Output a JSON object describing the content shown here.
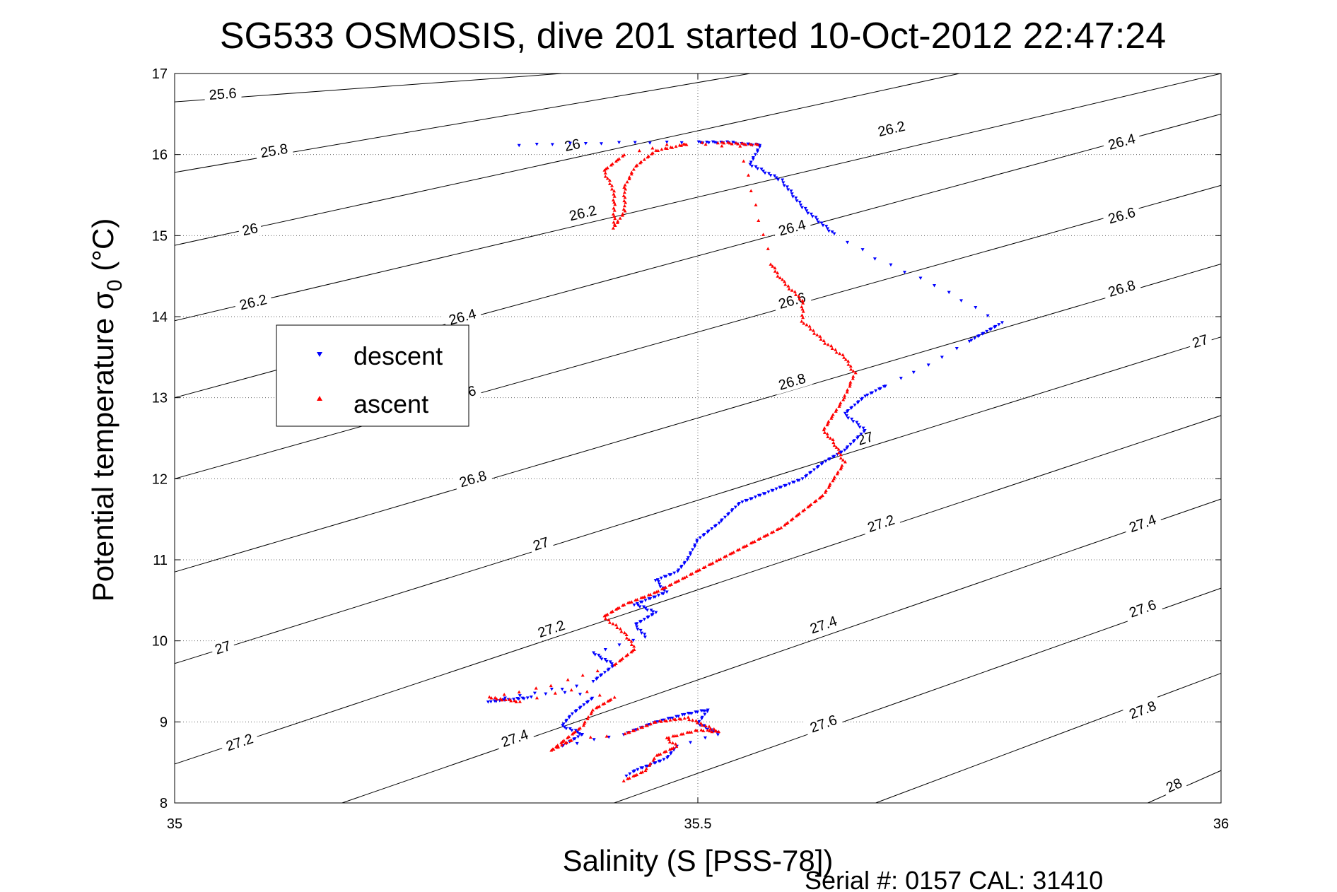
{
  "chart_data": {
    "type": "scatter",
    "title": "SG533 OSMOSIS, dive 201 started 10-Oct-2012 22:47:24",
    "xlabel": "Salinity (S [PSS-78])",
    "ylabel_main": "Potential temperature σ",
    "ylabel_sub": "0",
    "ylabel_unit": " (°C)",
    "xlim": [
      35,
      36
    ],
    "ylim": [
      8,
      17
    ],
    "xticks": [
      35,
      35.5,
      36
    ],
    "xtick_labels": [
      "35",
      "35.5",
      "36"
    ],
    "yticks": [
      8,
      9,
      10,
      11,
      12,
      13,
      14,
      15,
      16,
      17
    ],
    "ytick_labels": [
      "8",
      "9",
      "10",
      "11",
      "12",
      "13",
      "14",
      "15",
      "16",
      "17"
    ],
    "grid": true,
    "legend_position": "left",
    "footer": "Serial #: 0157  CAL: 31410",
    "contours": [
      {
        "label": "25.6",
        "segment": [
          [
            35.0,
            16.65
          ],
          [
            35.37,
            17.0
          ]
        ],
        "labels_at": [
          [
            35.046,
            16.75
          ]
        ]
      },
      {
        "label": "25.8",
        "segment": [
          [
            35.0,
            15.78
          ],
          [
            35.55,
            17.0
          ]
        ],
        "labels_at": [
          [
            35.095,
            16.05
          ]
        ]
      },
      {
        "label": "26",
        "segment": [
          [
            35.0,
            14.88
          ],
          [
            35.75,
            17.0
          ]
        ],
        "labels_at": [
          [
            35.072,
            15.08
          ],
          [
            35.38,
            16.12
          ]
        ]
      },
      {
        "label": "26.2",
        "segment": [
          [
            35.0,
            13.95
          ],
          [
            36.0,
            17.0
          ]
        ],
        "labels_at": [
          [
            35.075,
            14.18
          ],
          [
            35.39,
            15.28
          ],
          [
            35.685,
            16.32
          ]
        ]
      },
      {
        "label": "26.4",
        "segment": [
          [
            35.0,
            13.0
          ],
          [
            36.0,
            16.5
          ]
        ],
        "labels_at": [
          [
            35.275,
            14.0
          ],
          [
            35.59,
            15.1
          ],
          [
            35.905,
            16.16
          ]
        ]
      },
      {
        "label": "26.6",
        "segment": [
          [
            35.0,
            12.0
          ],
          [
            36.0,
            15.62
          ]
        ],
        "labels_at": [
          [
            35.275,
            13.05
          ],
          [
            35.59,
            14.2
          ],
          [
            35.905,
            15.25
          ]
        ]
      },
      {
        "label": "26.8",
        "segment": [
          [
            35.0,
            10.85
          ],
          [
            36.0,
            14.65
          ]
        ],
        "labels_at": [
          [
            35.285,
            12.0
          ],
          [
            35.59,
            13.2
          ],
          [
            35.905,
            14.35
          ]
        ]
      },
      {
        "label": "27",
        "segment": [
          [
            35.0,
            9.72
          ],
          [
            36.0,
            13.75
          ]
        ],
        "labels_at": [
          [
            35.046,
            9.92
          ],
          [
            35.35,
            11.2
          ],
          [
            35.66,
            12.5
          ],
          [
            35.98,
            13.7
          ]
        ]
      },
      {
        "label": "27.2",
        "segment": [
          [
            35.0,
            8.48
          ],
          [
            36.0,
            12.78
          ]
        ],
        "labels_at": [
          [
            35.062,
            8.75
          ],
          [
            35.36,
            10.15
          ],
          [
            35.675,
            11.45
          ]
        ]
      },
      {
        "label": "27.4",
        "segment": [
          [
            35.16,
            8.0
          ],
          [
            36.0,
            11.75
          ]
        ],
        "labels_at": [
          [
            35.325,
            8.8
          ],
          [
            35.62,
            10.2
          ],
          [
            35.925,
            11.45
          ]
        ]
      },
      {
        "label": "27.6",
        "segment": [
          [
            35.42,
            8.0
          ],
          [
            36.0,
            10.65
          ]
        ],
        "labels_at": [
          [
            35.62,
            8.98
          ],
          [
            35.925,
            10.4
          ]
        ]
      },
      {
        "label": "27.8",
        "segment": [
          [
            35.67,
            8.0
          ],
          [
            36.0,
            9.6
          ]
        ],
        "labels_at": [
          [
            35.925,
            9.15
          ]
        ]
      },
      {
        "label": "28",
        "segment": [
          [
            35.93,
            8.0
          ],
          [
            36.0,
            8.4
          ]
        ],
        "labels_at": [
          [
            35.955,
            8.22
          ]
        ]
      }
    ],
    "series": [
      {
        "name": "descent",
        "color": "#0000ff",
        "marker": "triangle-down",
        "path": [
          [
            35.33,
            16.12
          ],
          [
            35.44,
            16.15
          ],
          [
            35.5,
            16.15
          ],
          [
            35.53,
            16.15
          ],
          [
            35.55,
            16.12
          ],
          [
            35.56,
            16.12
          ],
          [
            35.55,
            15.88
          ],
          [
            35.58,
            15.68
          ],
          [
            35.6,
            15.35
          ],
          [
            35.63,
            15.02
          ],
          [
            35.67,
            14.72
          ],
          [
            35.74,
            14.3
          ],
          [
            35.79,
            13.92
          ],
          [
            35.76,
            13.7
          ],
          [
            35.72,
            13.4
          ],
          [
            35.68,
            13.15
          ],
          [
            35.66,
            13.02
          ],
          [
            35.64,
            12.8
          ],
          [
            35.66,
            12.6
          ],
          [
            35.64,
            12.35
          ],
          [
            35.62,
            12.2
          ],
          [
            35.6,
            12.0
          ],
          [
            35.57,
            11.85
          ],
          [
            35.54,
            11.7
          ],
          [
            35.52,
            11.45
          ],
          [
            35.5,
            11.25
          ],
          [
            35.49,
            11.0
          ],
          [
            35.48,
            10.85
          ],
          [
            35.46,
            10.75
          ],
          [
            35.47,
            10.6
          ],
          [
            35.44,
            10.45
          ],
          [
            35.46,
            10.35
          ],
          [
            35.44,
            10.2
          ],
          [
            35.45,
            10.05
          ],
          [
            35.4,
            9.85
          ],
          [
            35.42,
            9.7
          ],
          [
            35.4,
            9.5
          ],
          [
            35.34,
            9.3
          ],
          [
            35.3,
            9.25
          ],
          [
            35.36,
            9.4
          ],
          [
            35.4,
            9.3
          ],
          [
            35.38,
            9.1
          ],
          [
            35.37,
            8.95
          ],
          [
            35.39,
            8.85
          ],
          [
            35.37,
            8.7
          ],
          [
            35.43,
            8.85
          ],
          [
            35.46,
            9.0
          ],
          [
            35.49,
            9.1
          ],
          [
            35.51,
            9.15
          ],
          [
            35.5,
            8.98
          ],
          [
            35.52,
            8.85
          ],
          [
            35.48,
            8.7
          ],
          [
            35.47,
            8.55
          ],
          [
            35.44,
            8.4
          ],
          [
            35.43,
            8.32
          ]
        ]
      },
      {
        "name": "ascent",
        "color": "#ff0000",
        "marker": "triangle-up",
        "path": [
          [
            35.43,
            8.28
          ],
          [
            35.45,
            8.4
          ],
          [
            35.46,
            8.58
          ],
          [
            35.48,
            8.7
          ],
          [
            35.47,
            8.8
          ],
          [
            35.5,
            8.9
          ],
          [
            35.52,
            8.88
          ],
          [
            35.49,
            9.05
          ],
          [
            35.46,
            9.0
          ],
          [
            35.43,
            8.85
          ],
          [
            35.38,
            8.78
          ],
          [
            35.36,
            8.65
          ],
          [
            35.39,
            8.95
          ],
          [
            35.4,
            9.15
          ],
          [
            35.42,
            9.3
          ],
          [
            35.38,
            9.4
          ],
          [
            35.33,
            9.25
          ],
          [
            35.3,
            9.3
          ],
          [
            35.36,
            9.45
          ],
          [
            35.42,
            9.7
          ],
          [
            35.44,
            9.9
          ],
          [
            35.43,
            10.1
          ],
          [
            35.41,
            10.3
          ],
          [
            35.43,
            10.45
          ],
          [
            35.46,
            10.6
          ],
          [
            35.49,
            10.8
          ],
          [
            35.52,
            11.0
          ],
          [
            35.55,
            11.2
          ],
          [
            35.58,
            11.4
          ],
          [
            35.6,
            11.6
          ],
          [
            35.62,
            11.8
          ],
          [
            35.63,
            12.0
          ],
          [
            35.64,
            12.2
          ],
          [
            35.63,
            12.45
          ],
          [
            35.62,
            12.6
          ],
          [
            35.63,
            12.8
          ],
          [
            35.64,
            13.0
          ],
          [
            35.65,
            13.3
          ],
          [
            35.64,
            13.5
          ],
          [
            35.62,
            13.7
          ],
          [
            35.6,
            13.95
          ],
          [
            35.6,
            14.2
          ],
          [
            35.58,
            14.45
          ],
          [
            35.57,
            14.65
          ],
          [
            35.54,
            16.1
          ],
          [
            35.49,
            16.13
          ],
          [
            35.46,
            16.05
          ],
          [
            35.44,
            15.85
          ],
          [
            35.43,
            15.6
          ],
          [
            35.43,
            15.3
          ],
          [
            35.42,
            15.1
          ],
          [
            35.42,
            15.55
          ],
          [
            35.41,
            15.8
          ],
          [
            35.43,
            16.0
          ],
          [
            35.47,
            16.12
          ],
          [
            35.52,
            16.15
          ],
          [
            35.56,
            16.12
          ]
        ]
      }
    ]
  }
}
